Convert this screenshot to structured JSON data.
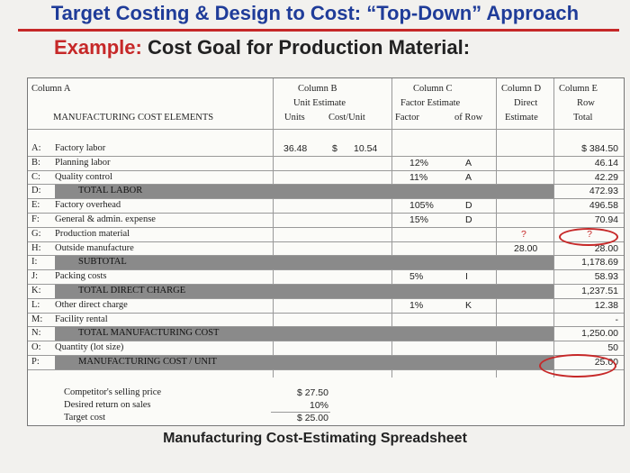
{
  "title": "Target Costing & Design to Cost: “Top-Down” Approach",
  "subtitle": {
    "prefix": "Example:",
    "rest": " Cost Goal for Production Material:"
  },
  "headers": {
    "col_a": "Column A",
    "col_b": "Column B",
    "col_b_sub": "Unit Estimate",
    "col_b_units": "Units",
    "col_b_cost": "Cost/Unit",
    "col_c": "Column C",
    "col_c_sub": "Factor Estimate",
    "col_c_factor": "Factor",
    "col_c_row": "of Row",
    "col_d": "Column D",
    "col_d_sub": "Direct",
    "col_d_sub2": "Estimate",
    "col_e": "Column E",
    "col_e_sub": "Row",
    "col_e_sub2": "Total",
    "elements": "MANUFACTURING COST ELEMENTS"
  },
  "rows": [
    {
      "key": "A:",
      "label": "Factory labor",
      "units": "36.48",
      "dollar": "$",
      "cost": "10.54",
      "factor": "",
      "of_row": "",
      "direct": "",
      "total": "$   384.50"
    },
    {
      "key": "B:",
      "label": "Planning labor",
      "units": "",
      "dollar": "",
      "cost": "",
      "factor": "12%",
      "of_row": "A",
      "direct": "",
      "total": "46.14"
    },
    {
      "key": "C:",
      "label": "Quality control",
      "units": "",
      "dollar": "",
      "cost": "",
      "factor": "11%",
      "of_row": "A",
      "direct": "",
      "total": "42.29"
    },
    {
      "key": "D:",
      "label": "TOTAL LABOR",
      "units": "",
      "dollar": "",
      "cost": "",
      "factor": "",
      "of_row": "",
      "direct": "",
      "total": "472.93"
    },
    {
      "key": "E:",
      "label": "Factory overhead",
      "units": "",
      "dollar": "",
      "cost": "",
      "factor": "105%",
      "of_row": "D",
      "direct": "",
      "total": "496.58"
    },
    {
      "key": "F:",
      "label": "General & admin. expense",
      "units": "",
      "dollar": "",
      "cost": "",
      "factor": "15%",
      "of_row": "D",
      "direct": "",
      "total": "70.94"
    },
    {
      "key": "G:",
      "label": "Production material",
      "units": "",
      "dollar": "",
      "cost": "",
      "factor": "",
      "of_row": "",
      "direct": "?",
      "total": "?"
    },
    {
      "key": "H:",
      "label": "Outside manufacture",
      "units": "",
      "dollar": "",
      "cost": "",
      "factor": "",
      "of_row": "",
      "direct": "28.00",
      "total": "28.00"
    },
    {
      "key": "I:",
      "label": "SUBTOTAL",
      "units": "",
      "dollar": "",
      "cost": "",
      "factor": "",
      "of_row": "",
      "direct": "",
      "total": "1,178.69"
    },
    {
      "key": "J:",
      "label": "Packing costs",
      "units": "",
      "dollar": "",
      "cost": "",
      "factor": "5%",
      "of_row": "I",
      "direct": "",
      "total": "58.93"
    },
    {
      "key": "K:",
      "label": "TOTAL DIRECT CHARGE",
      "units": "",
      "dollar": "",
      "cost": "",
      "factor": "",
      "of_row": "",
      "direct": "",
      "total": "1,237.51"
    },
    {
      "key": "L:",
      "label": "Other direct charge",
      "units": "",
      "dollar": "",
      "cost": "",
      "factor": "1%",
      "of_row": "K",
      "direct": "",
      "total": "12.38"
    },
    {
      "key": "M:",
      "label": "Facility rental",
      "units": "",
      "dollar": "",
      "cost": "",
      "factor": "",
      "of_row": "",
      "direct": "",
      "total": "-"
    },
    {
      "key": "N:",
      "label": "TOTAL MANUFACTURING COST",
      "units": "",
      "dollar": "",
      "cost": "",
      "factor": "",
      "of_row": "",
      "direct": "",
      "total": "1,250.00"
    },
    {
      "key": "O:",
      "label": "Quantity (lot size)",
      "units": "",
      "dollar": "",
      "cost": "",
      "factor": "",
      "of_row": "",
      "direct": "",
      "total": "50"
    },
    {
      "key": "P:",
      "label": "MANUFACTURING COST / UNIT",
      "units": "",
      "dollar": "",
      "cost": "",
      "factor": "",
      "of_row": "",
      "direct": "",
      "total": "25.00"
    }
  ],
  "summary": [
    {
      "label": "Competitor's selling price",
      "value": "$  27.50"
    },
    {
      "label": "Desired return on sales",
      "value": "10%"
    },
    {
      "label": "Target cost",
      "value": "$  25.00"
    }
  ],
  "caption": "Manufacturing Cost-Estimating Spreadsheet"
}
